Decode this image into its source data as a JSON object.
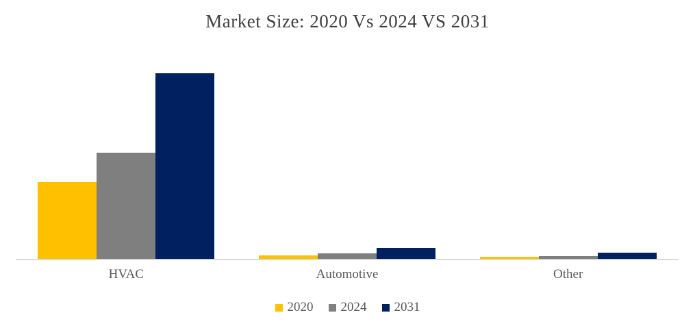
{
  "chart_data": {
    "type": "bar",
    "title": "Market Size: 2020 Vs 2024 VS 2031",
    "categories": [
      "HVAC",
      "Automotive",
      "Other"
    ],
    "series": [
      {
        "name": "2020",
        "color": "#FFC000",
        "values": [
          112,
          5,
          3
        ]
      },
      {
        "name": "2024",
        "color": "#7F7F7F",
        "values": [
          155,
          8,
          4
        ]
      },
      {
        "name": "2031",
        "color": "#002060",
        "values": [
          271,
          16,
          9
        ]
      }
    ],
    "ylim": [
      0,
      304
    ],
    "xlabel": "",
    "ylabel": "",
    "grid": false,
    "value_axis_visible": false,
    "legend_position": "bottom",
    "axis_line_color": "#D9D9D9",
    "title_color": "#404040",
    "label_color": "#595959"
  }
}
